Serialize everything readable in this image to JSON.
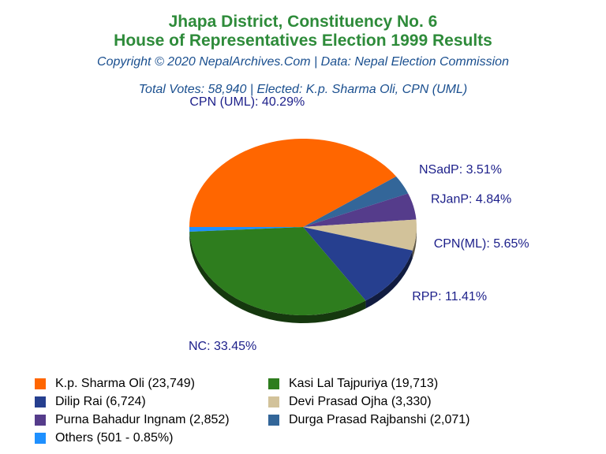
{
  "header": {
    "title_line1": "Jhapa District, Constituency No. 6",
    "title_line2": "House of Representatives Election 1999 Results",
    "copyright": "Copyright © 2020 NepalArchives.Com | Data: Nepal Election Commission",
    "summary": "Total Votes: 58,940 | Elected: K.p. Sharma Oli, CPN (UML)"
  },
  "chart_data": {
    "type": "pie",
    "total_votes": 58940,
    "slices": [
      {
        "party": "CPN (UML)",
        "percent": 40.29,
        "label": "CPN (UML): 40.29%",
        "candidate": "K.p. Sharma Oli",
        "votes": 23749,
        "color": "#ff6600"
      },
      {
        "party": "NSadP",
        "percent": 3.51,
        "label": "NSadP: 3.51%",
        "candidate": "Durga Prasad Rajbanshi",
        "votes": 2071,
        "color": "#336699"
      },
      {
        "party": "RJanP",
        "percent": 4.84,
        "label": "RJanP: 4.84%",
        "candidate": "Purna Bahadur Ingnam",
        "votes": 2852,
        "color": "#553c8b"
      },
      {
        "party": "CPN(ML)",
        "percent": 5.65,
        "label": "CPN(ML): 5.65%",
        "candidate": "Devi Prasad Ojha",
        "votes": 3330,
        "color": "#d2c29a"
      },
      {
        "party": "RPP",
        "percent": 11.41,
        "label": "RPP: 11.41%",
        "candidate": "Dilip Rai",
        "votes": 6724,
        "color": "#263f8f"
      },
      {
        "party": "NC",
        "percent": 33.45,
        "label": "NC: 33.45%",
        "candidate": "Kasi Lal Tajpuriya",
        "votes": 19713,
        "color": "#2e7d1e"
      },
      {
        "party": "Others",
        "percent": 0.85,
        "label": "",
        "candidate": "Others",
        "votes": 501,
        "color": "#1e90ff"
      }
    ],
    "draw_order": [
      "Others",
      "NSadP",
      "RJanP",
      "CPN(ML)",
      "RPP",
      "NC",
      "CPN (UML)"
    ],
    "legend": [
      {
        "text": "K.p. Sharma Oli (23,749)",
        "color": "#ff6600"
      },
      {
        "text": "Kasi Lal Tajpuriya (19,713)",
        "color": "#2e7d1e"
      },
      {
        "text": "Dilip Rai (6,724)",
        "color": "#263f8f"
      },
      {
        "text": "Devi Prasad Ojha (3,330)",
        "color": "#d2c29a"
      },
      {
        "text": "Purna Bahadur Ingnam (2,852)",
        "color": "#553c8b"
      },
      {
        "text": "Durga Prasad Rajbanshi (2,071)",
        "color": "#336699"
      },
      {
        "text": "Others (501 - 0.85%)",
        "color": "#1e90ff"
      }
    ],
    "legend_placement": "bottom, two columns"
  }
}
